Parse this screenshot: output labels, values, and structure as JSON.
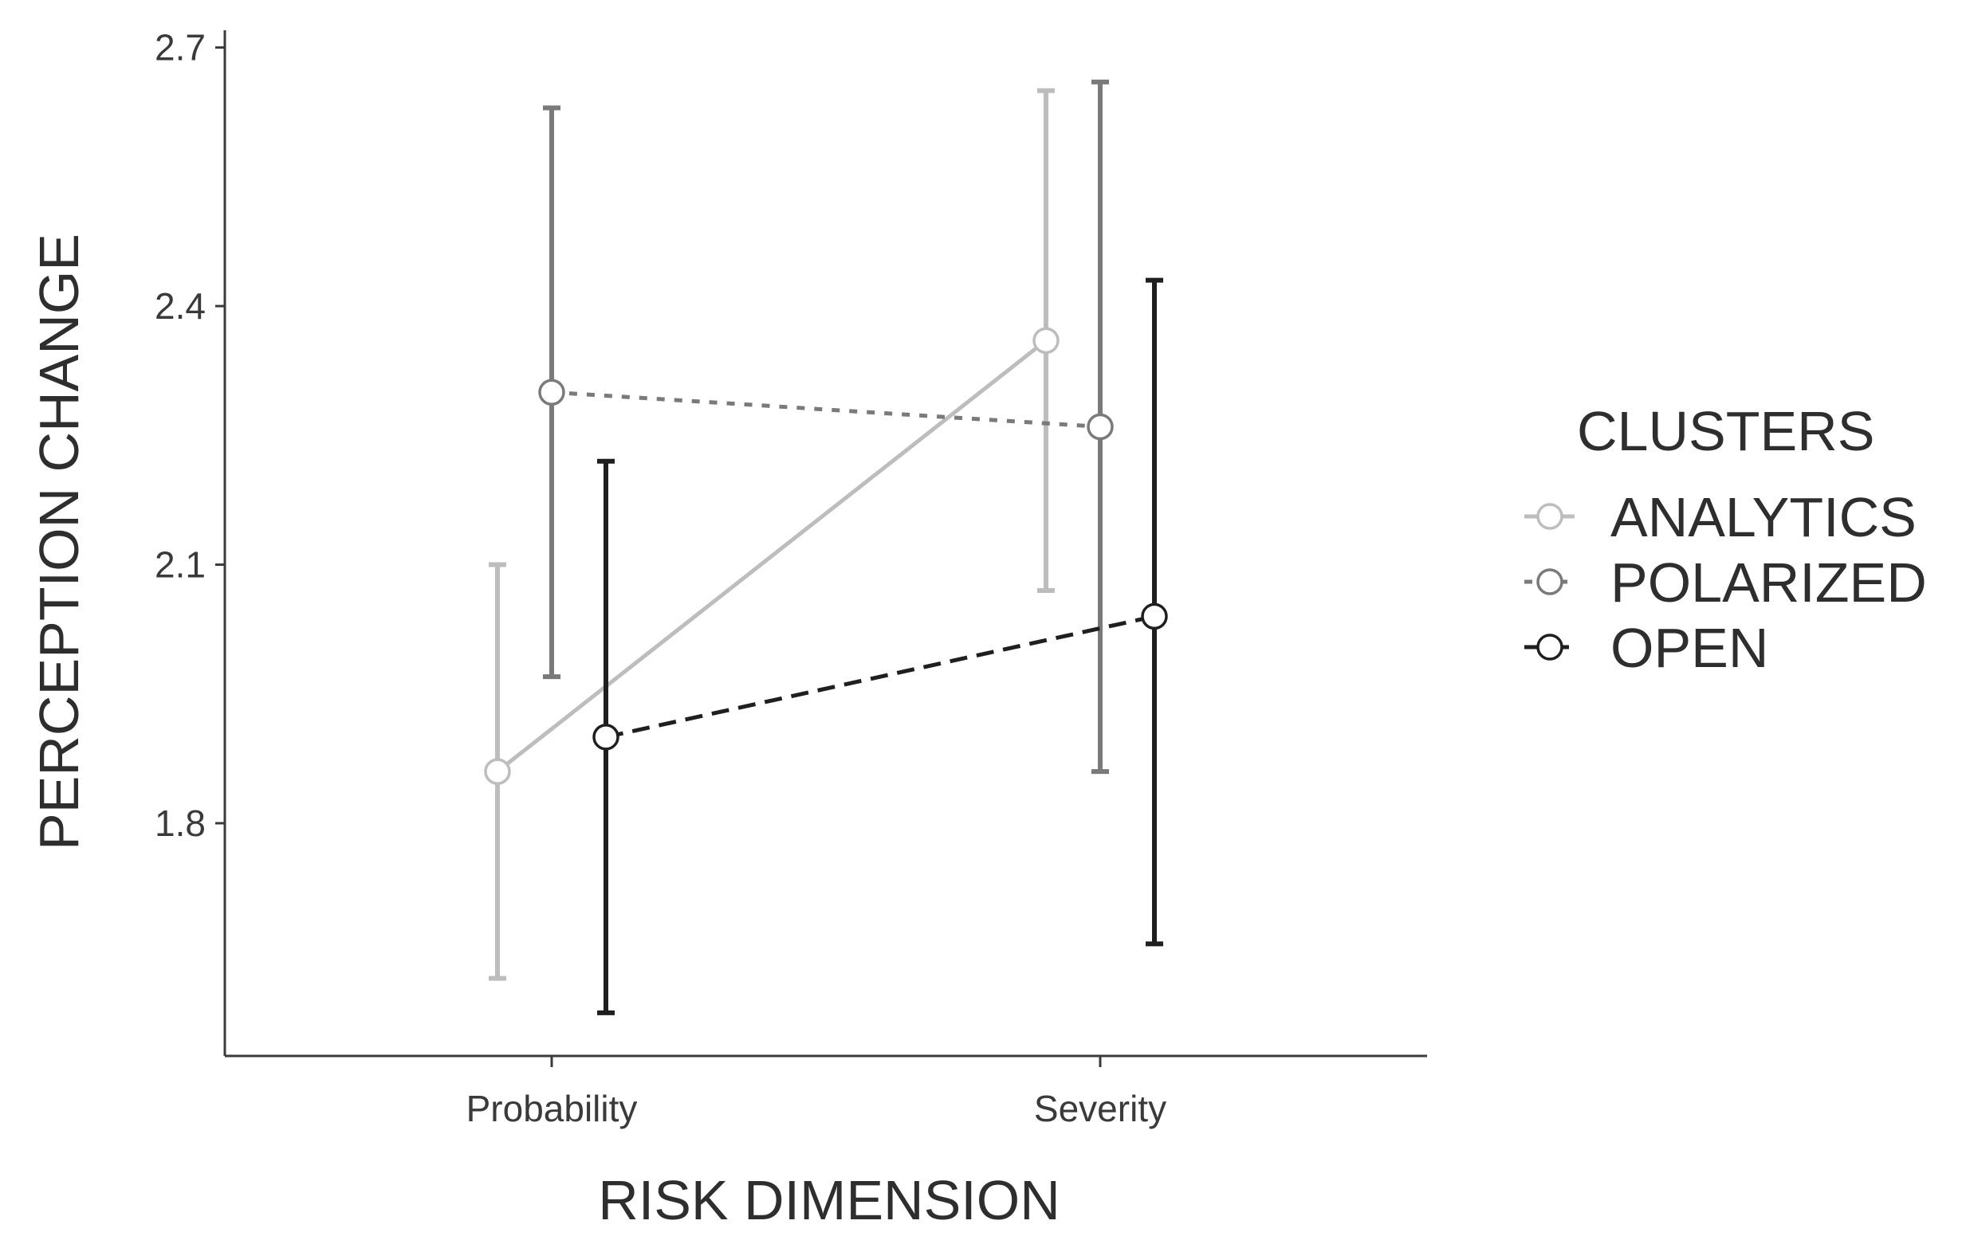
{
  "chart_data": {
    "type": "line",
    "xlabel": "RISK DIMENSION",
    "ylabel": "PERCEPTION CHANGE",
    "categories": [
      "Probability",
      "Severity"
    ],
    "yticks": [
      1.8,
      2.1,
      2.4,
      2.7
    ],
    "ylim": [
      1.53,
      2.72
    ],
    "grid": false,
    "legend": {
      "title": "CLUSTERS",
      "placement": "right"
    },
    "series": [
      {
        "name": "ANALYTICS",
        "color": "#bdbdbd",
        "dash": "solid",
        "values": [
          1.86,
          2.36
        ],
        "lower": [
          1.62,
          2.07
        ],
        "upper": [
          2.1,
          2.65
        ]
      },
      {
        "name": "POLARIZED",
        "color": "#7a7a7a",
        "dash": "dotted",
        "values": [
          2.3,
          2.26
        ],
        "lower": [
          1.97,
          1.86
        ],
        "upper": [
          2.63,
          2.66
        ]
      },
      {
        "name": "OPEN",
        "color": "#1f1f1f",
        "dash": "dashed",
        "values": [
          1.9,
          2.04
        ],
        "lower": [
          1.58,
          1.66
        ],
        "upper": [
          2.22,
          2.43
        ]
      }
    ]
  }
}
